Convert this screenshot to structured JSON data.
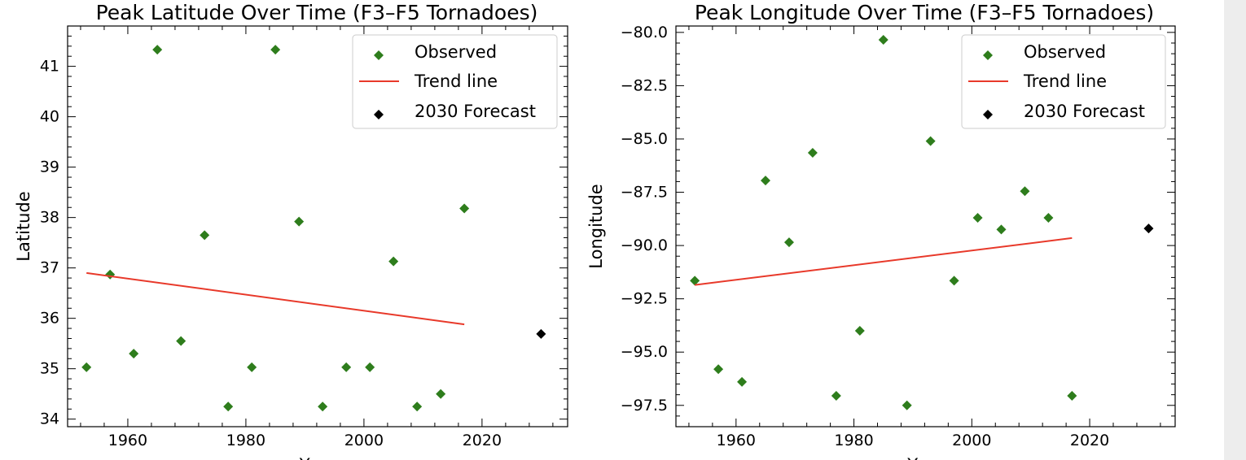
{
  "chart_data": [
    {
      "type": "scatter",
      "title": "Peak Latitude Over Time (F3–F5 Tornadoes)",
      "xlabel": "Year",
      "ylabel": "Latitude",
      "xlim": [
        1949.8,
        2034.5
      ],
      "ylim": [
        33.85,
        41.8
      ],
      "xticks": [
        1960,
        1980,
        2000,
        2020
      ],
      "yticks": [
        34,
        35,
        36,
        37,
        38,
        39,
        40,
        41
      ],
      "ytick_labels": [
        "34",
        "35",
        "36",
        "37",
        "38",
        "39",
        "40",
        "41"
      ],
      "legend": {
        "position": "upper-right",
        "entries": [
          "Observed",
          "Trend line",
          "2030 Forecast"
        ]
      },
      "series": [
        {
          "name": "Observed",
          "kind": "scatter",
          "marker": "diamond",
          "color": "#2e7d1c",
          "x": [
            1953,
            1957,
            1961,
            1965,
            1969,
            1973,
            1977,
            1981,
            1985,
            1989,
            1993,
            1997,
            2001,
            2005,
            2009,
            2013,
            2017
          ],
          "y": [
            35.03,
            36.87,
            35.3,
            41.33,
            35.55,
            37.65,
            34.25,
            35.03,
            41.33,
            37.92,
            34.25,
            35.03,
            35.03,
            37.13,
            34.25,
            34.5,
            38.18
          ]
        },
        {
          "name": "Trend line",
          "kind": "line",
          "color": "#e8392a",
          "x": [
            1953,
            2017
          ],
          "y": [
            36.9,
            35.88
          ]
        },
        {
          "name": "2030 Forecast",
          "kind": "scatter",
          "marker": "diamond",
          "color": "#000000",
          "x": [
            2030
          ],
          "y": [
            35.69
          ]
        }
      ]
    },
    {
      "type": "scatter",
      "title": "Peak Longitude Over Time (F3–F5 Tornadoes)",
      "xlabel": "Year",
      "ylabel": "Longitude",
      "xlim": [
        1949.8,
        2034.5
      ],
      "ylim": [
        -98.5,
        -79.7
      ],
      "xticks": [
        1960,
        1980,
        2000,
        2020
      ],
      "yticks": [
        -97.5,
        -95.0,
        -92.5,
        -90.0,
        -87.5,
        -85.0,
        -82.5,
        -80.0
      ],
      "ytick_labels": [
        "−97.5",
        "−95.0",
        "−92.5",
        "−90.0",
        "−87.5",
        "−85.0",
        "−82.5",
        "−80.0"
      ],
      "legend": {
        "position": "upper-right",
        "entries": [
          "Observed",
          "Trend line",
          "2030 Forecast"
        ]
      },
      "series": [
        {
          "name": "Observed",
          "kind": "scatter",
          "marker": "diamond",
          "color": "#2e7d1c",
          "x": [
            1953,
            1957,
            1961,
            1965,
            1969,
            1973,
            1977,
            1981,
            1985,
            1989,
            1993,
            1997,
            2001,
            2005,
            2009,
            2013,
            2017
          ],
          "y": [
            -91.65,
            -95.8,
            -96.4,
            -86.95,
            -89.85,
            -85.65,
            -97.05,
            -94.0,
            -80.35,
            -97.5,
            -85.1,
            -91.65,
            -88.7,
            -89.25,
            -87.45,
            -88.7,
            -97.05
          ]
        },
        {
          "name": "Trend line",
          "kind": "line",
          "color": "#e8392a",
          "x": [
            1953,
            2017
          ],
          "y": [
            -91.85,
            -89.65
          ]
        },
        {
          "name": "2030 Forecast",
          "kind": "scatter",
          "marker": "diamond",
          "color": "#000000",
          "x": [
            2030
          ],
          "y": [
            -89.2
          ]
        }
      ]
    }
  ]
}
